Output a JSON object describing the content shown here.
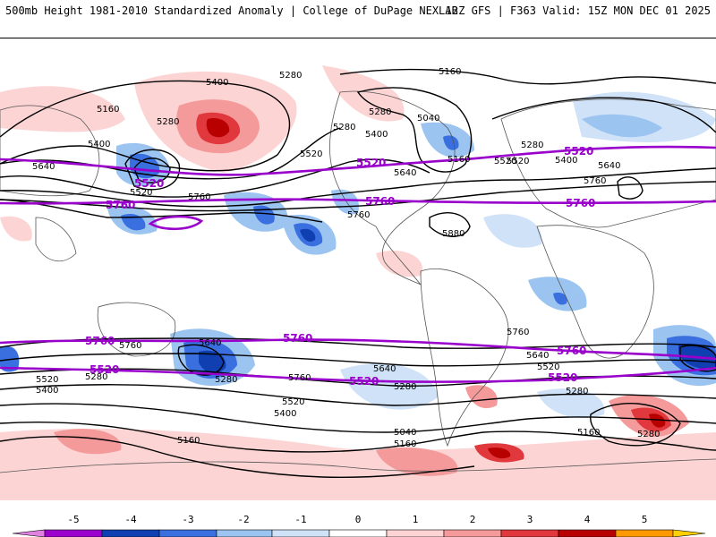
{
  "header": {
    "left": "500mb Height 1981-2010 Standardized Anomaly | College of DuPage NEXLAB",
    "right": "12Z GFS | F363 Valid: 15Z MON DEC 01 2025"
  },
  "legend": {
    "ticks": [
      "-5",
      "-4",
      "-3",
      "-2",
      "-1",
      "0",
      "1",
      "2",
      "3",
      "4",
      "5"
    ],
    "colors": [
      "#e080e0",
      "#9b00cc",
      "#0f3fb0",
      "#3a6fe0",
      "#9cc4f0",
      "#cfe2f7",
      "#ffffff",
      "#fcd4d4",
      "#f59a9a",
      "#e0383c",
      "#b80000",
      "#ff9900",
      "#ffd000"
    ]
  },
  "map": {
    "contour_labels": [
      "5400",
      "5280",
      "5160",
      "5280",
      "5400",
      "5640",
      "5520",
      "5760",
      "5520",
      "5280",
      "5160",
      "5040",
      "5400",
      "5280",
      "5520",
      "5640",
      "5760",
      "5880",
      "5160",
      "5280",
      "5520",
      "5400",
      "5640",
      "5760",
      "5760",
      "5640",
      "5520",
      "5280",
      "5280",
      "5760",
      "5640",
      "5520",
      "5400",
      "5280",
      "5160",
      "5040",
      "5160",
      "5760",
      "5640",
      "5520",
      "5400",
      "5280",
      "5160",
      "5280"
    ],
    "magenta_labels": [
      "5520",
      "5760",
      "5520",
      "5760",
      "5520",
      "5760",
      "5760",
      "5760",
      "5520",
      "5520",
      "5760",
      "5520",
      "5760",
      "5520"
    ]
  }
}
